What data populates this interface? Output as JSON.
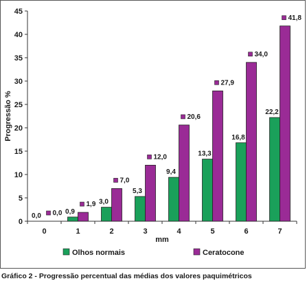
{
  "chart_data": {
    "type": "bar",
    "categories": [
      "0",
      "1",
      "2",
      "3",
      "4",
      "5",
      "6",
      "7"
    ],
    "series": [
      {
        "name": "Olhos normais",
        "color": "#1aa05a",
        "values": [
          0.0,
          0.9,
          3.0,
          5.3,
          9.4,
          13.3,
          16.8,
          22.2
        ],
        "labels": [
          "0,0",
          "0,9",
          "3,0",
          "5,3",
          "9,4",
          "13,3",
          "16,8",
          "22,2"
        ]
      },
      {
        "name": "Ceratocone",
        "color": "#9a2b96",
        "values": [
          0.0,
          1.9,
          7.0,
          12.0,
          20.6,
          27.9,
          34.0,
          41.8
        ],
        "labels": [
          "0,0",
          "1,9",
          "7,0",
          "12,0",
          "20,6",
          "27,9",
          "34,0",
          "41,8"
        ]
      }
    ],
    "xlabel": "mm",
    "ylabel": "Progressão %",
    "ylim": [
      0,
      45
    ],
    "yticks": [
      "0",
      "5",
      "10",
      "15",
      "20",
      "25",
      "30",
      "35",
      "40",
      "45"
    ],
    "grid": false,
    "legend_position": "bottom"
  },
  "caption": "Gráfico 2 - Progressão percentual das médias dos valores paquimétricos"
}
